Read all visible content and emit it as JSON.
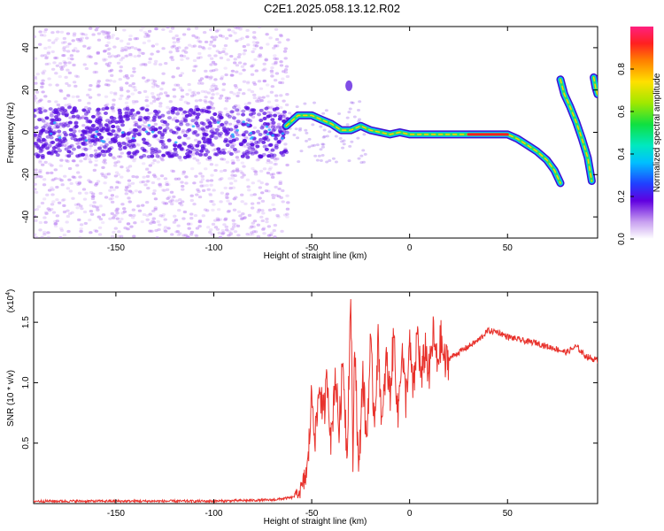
{
  "title": "C2E1.2025.058.13.12.R02",
  "chart_data": [
    {
      "type": "heatmap",
      "xlabel": "Height of straight line (km)",
      "ylabel": "Frequency (Hz)",
      "xlim": [
        -192,
        96
      ],
      "ylim": [
        -50,
        50
      ],
      "xticks": [
        -150,
        -100,
        -50,
        0,
        50
      ],
      "yticks": [
        -40,
        -20,
        0,
        20,
        40
      ],
      "colorbar": {
        "label": "Normalized spectral amplitude",
        "range": [
          0.0,
          1.0
        ],
        "ticks": [
          0.0,
          0.2,
          0.4,
          0.6,
          0.8
        ]
      },
      "ridge": {
        "x": [
          -63,
          -57,
          -50,
          -45,
          -40,
          -35,
          -30,
          -25,
          -20,
          -15,
          -10,
          -5,
          0,
          10,
          20,
          30,
          40,
          50,
          55,
          60,
          65,
          70,
          74,
          77
        ],
        "y": [
          3,
          8,
          8,
          6,
          4,
          1,
          1,
          3,
          1,
          0,
          -1,
          0,
          -1,
          -1,
          -1,
          -1,
          -1,
          -1,
          -3,
          -6,
          -9,
          -13,
          -18,
          -24
        ]
      },
      "branches": [
        {
          "x": [
            77,
            79,
            82,
            85,
            88,
            91,
            93
          ],
          "y": [
            25,
            18,
            12,
            5,
            -3,
            -12,
            -23
          ]
        },
        {
          "x": [
            94,
            95,
            96
          ],
          "y": [
            26,
            21,
            18
          ]
        }
      ]
    },
    {
      "type": "line",
      "xlabel": "Height of straight line (km)",
      "ylabel": "SNR (10 * v/v)",
      "yscale_label": "(x10",
      "yscale_exp": "4",
      "xlim": [
        -192,
        96
      ],
      "ylim": [
        0,
        1.75
      ],
      "xticks": [
        -150,
        -100,
        -50,
        0,
        50
      ],
      "yticks": [
        0.5,
        1.0,
        1.5
      ],
      "series": [
        {
          "color": "#e8312b",
          "x": [
            -192,
            -150,
            -100,
            -70,
            -60,
            -55,
            -52,
            -50,
            -48,
            -46,
            -44,
            -42,
            -40,
            -38,
            -36,
            -34,
            -32,
            -30,
            -29,
            -28,
            -26,
            -24,
            -22,
            -20,
            -18,
            -16,
            -14,
            -12,
            -10,
            -8,
            -6,
            -4,
            -2,
            0,
            2,
            4,
            6,
            8,
            10,
            12,
            14,
            16,
            18,
            20,
            25,
            30,
            35,
            40,
            45,
            50,
            55,
            60,
            65,
            70,
            75,
            80,
            85,
            90,
            96
          ],
          "y": [
            0.02,
            0.02,
            0.02,
            0.03,
            0.05,
            0.12,
            0.3,
            0.9,
            0.55,
            1.0,
            0.7,
            1.05,
            0.5,
            1.1,
            0.6,
            1.2,
            0.4,
            1.75,
            0.3,
            1.4,
            0.2,
            1.1,
            0.5,
            1.3,
            0.7,
            1.35,
            0.6,
            1.2,
            0.9,
            1.4,
            0.7,
            1.3,
            0.85,
            1.3,
            0.9,
            1.45,
            1.0,
            1.3,
            1.05,
            1.4,
            1.15,
            1.35,
            1.15,
            1.2,
            1.25,
            1.3,
            1.35,
            1.43,
            1.42,
            1.38,
            1.36,
            1.34,
            1.33,
            1.3,
            1.28,
            1.25,
            1.3,
            1.22,
            1.18
          ]
        }
      ]
    }
  ]
}
